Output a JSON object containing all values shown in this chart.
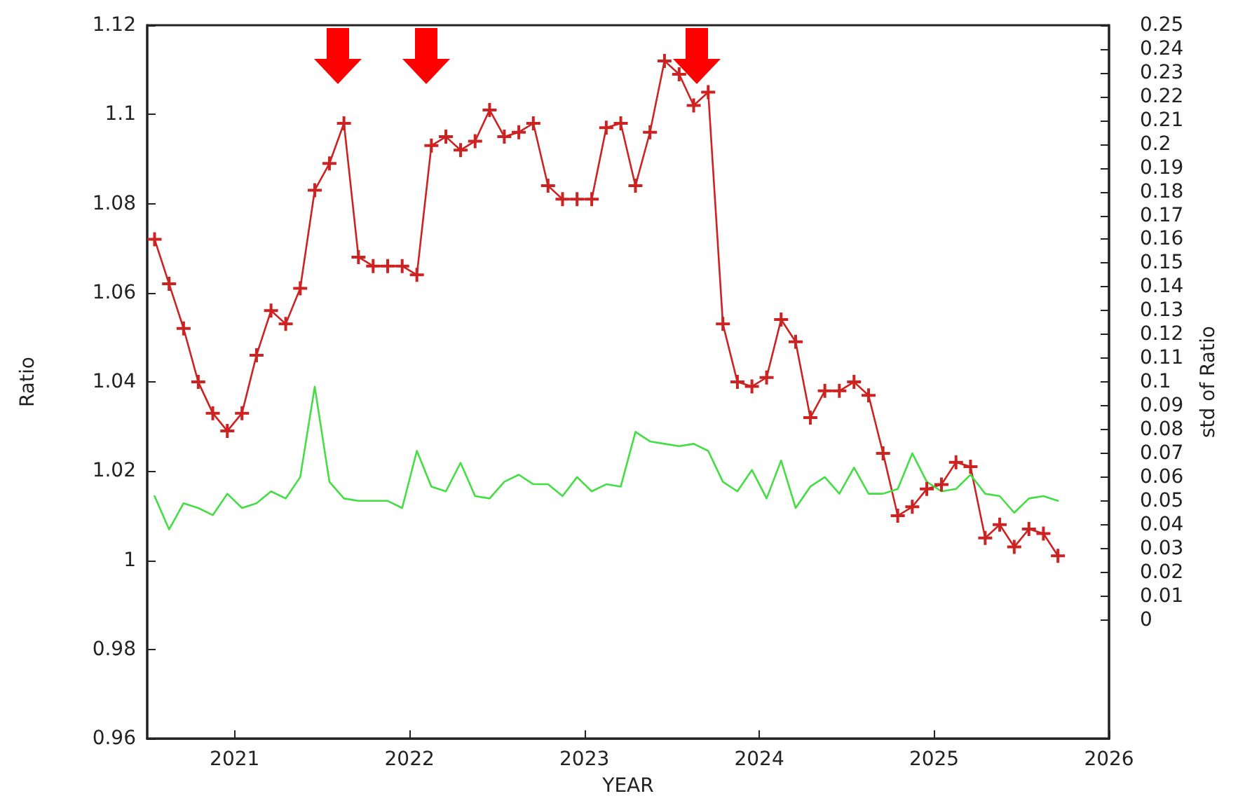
{
  "chart_data": {
    "type": "line",
    "xlabel": "YEAR",
    "ylabel": "Ratio",
    "y2label": "std of Ratio",
    "x": [
      2020.542,
      2020.625,
      2020.708,
      2020.792,
      2020.875,
      2020.958,
      2021.042,
      2021.125,
      2021.208,
      2021.292,
      2021.375,
      2021.458,
      2021.542,
      2021.625,
      2021.708,
      2021.792,
      2021.875,
      2021.958,
      2022.042,
      2022.125,
      2022.208,
      2022.292,
      2022.375,
      2022.458,
      2022.542,
      2022.625,
      2022.708,
      2022.792,
      2022.875,
      2022.958,
      2023.042,
      2023.125,
      2023.208,
      2023.292,
      2023.375,
      2023.458,
      2023.542,
      2023.625,
      2023.708,
      2023.792,
      2023.875,
      2023.958,
      2024.042,
      2024.125,
      2024.208,
      2024.292,
      2024.375,
      2024.458,
      2024.542,
      2024.625,
      2024.708,
      2024.792,
      2024.875,
      2024.958,
      2025.042,
      2025.125,
      2025.208,
      2025.292,
      2025.375,
      2025.458,
      2025.542,
      2025.625,
      2025.708
    ],
    "series": [
      {
        "color": "#cc2222",
        "marker": "cross",
        "values": [
          1.072,
          1.062,
          1.052,
          1.04,
          1.033,
          1.029,
          1.033,
          1.046,
          1.056,
          1.053,
          1.061,
          1.083,
          1.089,
          1.098,
          1.068,
          1.066,
          1.066,
          1.066,
          1.064,
          1.093,
          1.095,
          1.092,
          1.094,
          1.101,
          1.095,
          1.096,
          1.098,
          1.084,
          1.081,
          1.081,
          1.081,
          1.097,
          1.098,
          1.084,
          1.096,
          1.112,
          1.109,
          1.102,
          1.105,
          1.053,
          1.04,
          1.039,
          1.041,
          1.054,
          1.049,
          1.032,
          1.038,
          1.038,
          1.04,
          1.037,
          1.024,
          1.01,
          1.012,
          1.016,
          1.017,
          1.022,
          1.021,
          1.005,
          1.008,
          1.003,
          1.007,
          1.006,
          1.001
        ]
      },
      {
        "color": "#44dd44",
        "marker": "none",
        "axis": "y2",
        "values": [
          0.052,
          0.038,
          0.049,
          0.047,
          0.044,
          0.053,
          0.047,
          0.049,
          0.054,
          0.051,
          0.06,
          0.098,
          0.058,
          0.051,
          0.05,
          0.05,
          0.05,
          0.047,
          0.071,
          0.056,
          0.054,
          0.066,
          0.052,
          0.051,
          0.058,
          0.061,
          0.057,
          0.057,
          0.052,
          0.06,
          0.054,
          0.057,
          0.056,
          0.079,
          0.075,
          0.074,
          0.073,
          0.074,
          0.071,
          0.058,
          0.054,
          0.063,
          0.051,
          0.067,
          0.047,
          0.056,
          0.06,
          0.053,
          0.064,
          0.053,
          0.053,
          0.055,
          0.07,
          0.058,
          0.054,
          0.055,
          0.061,
          0.053,
          0.052,
          0.045,
          0.051,
          0.052,
          0.05
        ]
      }
    ],
    "xlim": [
      2020.5,
      2026
    ],
    "xticks": [
      2021,
      2022,
      2023,
      2024,
      2025,
      2026
    ],
    "ylim": [
      0.96,
      1.12
    ],
    "yticks": [
      0.96,
      0.98,
      1,
      1.02,
      1.04,
      1.06,
      1.08,
      1.1,
      1.12
    ],
    "y2lim": [
      -0.05,
      0.25
    ],
    "y2ticks": [
      0,
      0.01,
      0.02,
      0.03,
      0.04,
      0.05,
      0.06,
      0.07,
      0.08,
      0.09,
      0.1,
      0.11,
      0.12,
      0.13,
      0.14,
      0.15,
      0.16,
      0.17,
      0.18,
      0.19,
      0.2,
      0.21,
      0.22,
      0.23,
      0.24,
      0.25
    ],
    "line_style": "solid",
    "grid": false
  }
}
